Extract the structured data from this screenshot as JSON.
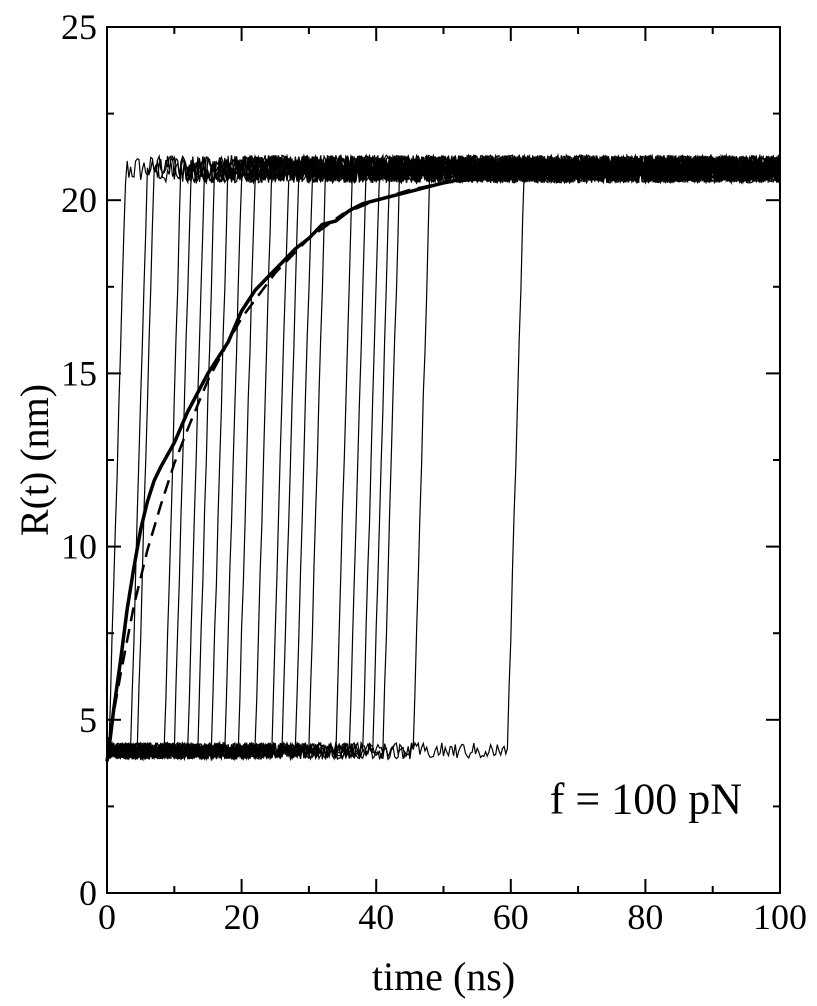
{
  "chart_data": {
    "type": "line",
    "xlabel": "time (ns)",
    "ylabel": "R(t) (nm)",
    "xlim": [
      0,
      100
    ],
    "ylim": [
      0,
      25
    ],
    "x_ticks": [
      0,
      20,
      40,
      60,
      80,
      100
    ],
    "x_tick_labels": [
      "0",
      "20",
      "40",
      "60",
      "80",
      "100"
    ],
    "y_ticks": [
      0,
      5,
      10,
      15,
      20,
      25
    ],
    "y_tick_labels": [
      "0",
      "5",
      "10",
      "15",
      "20",
      "25"
    ],
    "grid": false,
    "legend": "none",
    "annotation": "f = 100 pN",
    "annotation_position": "bottom-right",
    "line_color": "#000000",
    "series": [
      {
        "style": "thin-noisy",
        "description_of_shape": "individual trajectories: low plateau ~4.1 nm, sharp jump, high plateau ~21 nm",
        "low_level": 4.1,
        "high_level": 20.9,
        "noise_amplitude": 0.4,
        "jump_start_times": [
          0.3,
          3.5,
          4.5,
          8.5,
          10,
          12,
          13.5,
          15.5,
          17.5,
          19.5,
          22,
          24.5,
          26,
          28,
          30,
          34,
          36,
          38,
          39.5,
          41,
          45.5,
          59.5
        ],
        "jump_duration": 2.5
      },
      {
        "style": "thick-solid",
        "description_of_shape": "ensemble average",
        "x": [
          0,
          0.5,
          1,
          2,
          3,
          4,
          5,
          6,
          7,
          8,
          10,
          12,
          15,
          18,
          20,
          22,
          24,
          26,
          28,
          30,
          32,
          34,
          36,
          38,
          40,
          42,
          44,
          46,
          48,
          50,
          55,
          60,
          65,
          100
        ],
        "y": [
          3.8,
          4.5,
          5.3,
          6.7,
          8.2,
          9.4,
          10.5,
          11.3,
          11.9,
          12.3,
          13.0,
          13.9,
          15.0,
          15.9,
          16.8,
          17.4,
          17.8,
          18.2,
          18.6,
          18.9,
          19.3,
          19.4,
          19.7,
          19.9,
          20.0,
          20.1,
          20.2,
          20.3,
          20.4,
          20.5,
          20.7,
          20.8,
          20.85,
          20.9
        ]
      },
      {
        "style": "dashed",
        "description_of_shape": "exponential fit",
        "x": [
          0,
          1,
          2,
          3,
          4,
          5,
          6,
          8,
          10,
          12,
          15,
          18,
          20,
          25,
          30,
          35,
          40,
          45,
          50,
          60,
          70,
          100
        ],
        "y": [
          4.1,
          5.2,
          6.3,
          7.3,
          8.3,
          9.1,
          9.9,
          11.2,
          12.4,
          13.4,
          14.8,
          15.9,
          16.6,
          17.9,
          18.9,
          19.6,
          20.0,
          20.3,
          20.5,
          20.7,
          20.8,
          20.9
        ]
      }
    ]
  }
}
